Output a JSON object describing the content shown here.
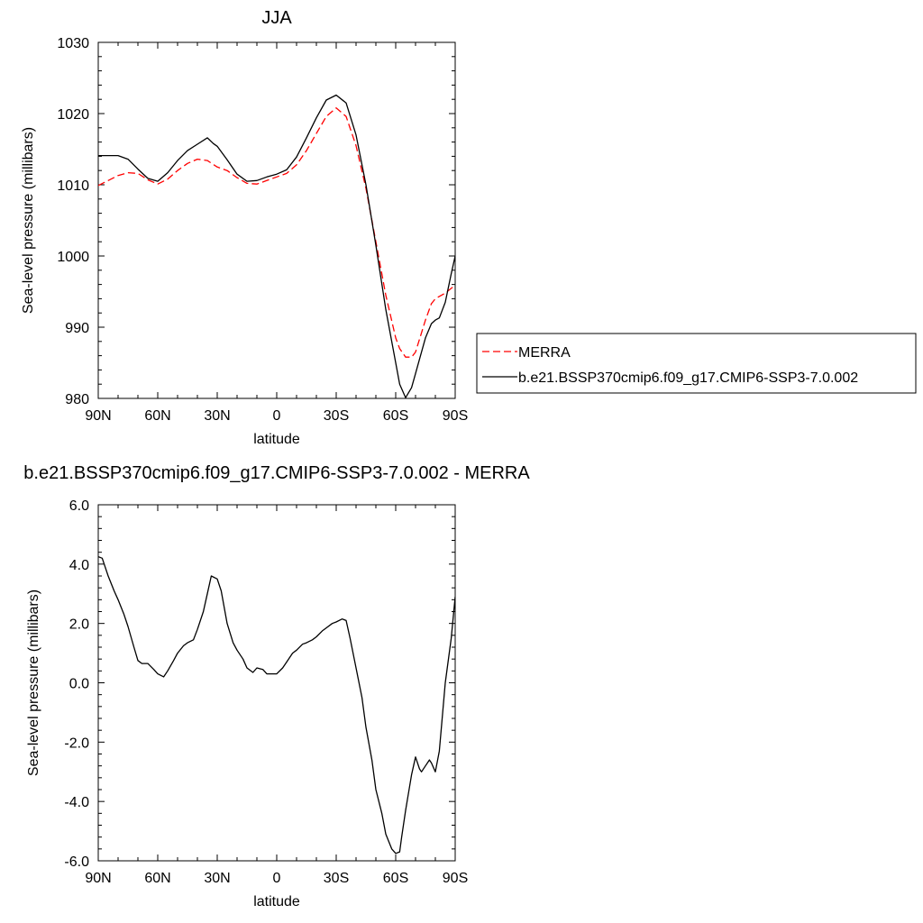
{
  "chart_data": [
    {
      "type": "line",
      "title": "JJA",
      "xlabel": "latitude",
      "ylabel": "Sea-level pressure (millibars)",
      "xlim": [
        -90,
        90
      ],
      "ylim": [
        980,
        1030
      ],
      "x_ticks": [
        {
          "value": -90,
          "label": "90N"
        },
        {
          "value": -60,
          "label": "60N"
        },
        {
          "value": -30,
          "label": "30N"
        },
        {
          "value": 0,
          "label": "0"
        },
        {
          "value": 30,
          "label": "30S"
        },
        {
          "value": 60,
          "label": "60S"
        },
        {
          "value": 90,
          "label": "90S"
        }
      ],
      "y_ticks": [
        {
          "value": 980,
          "label": "980"
        },
        {
          "value": 990,
          "label": "990"
        },
        {
          "value": 1000,
          "label": "1000"
        },
        {
          "value": 1010,
          "label": "1010"
        },
        {
          "value": 1020,
          "label": "1020"
        },
        {
          "value": 1030,
          "label": "1030"
        }
      ],
      "legend_position": "right",
      "series": [
        {
          "name": "MERRA",
          "color": "#ff0000",
          "style": "dashed",
          "x": [
            -90,
            -85,
            -80,
            -75,
            -70,
            -65,
            -60,
            -55,
            -50,
            -45,
            -40,
            -35,
            -30,
            -25,
            -20,
            -15,
            -10,
            -5,
            0,
            5,
            10,
            15,
            20,
            25,
            30,
            35,
            40,
            45,
            50,
            55,
            60,
            62,
            65,
            68,
            70,
            72,
            75,
            78,
            80,
            85,
            90
          ],
          "y": [
            1009.9,
            1010.6,
            1011.3,
            1011.7,
            1011.6,
            1010.7,
            1010.1,
            1010.8,
            1012.0,
            1013.0,
            1013.6,
            1013.4,
            1012.5,
            1012.0,
            1011.0,
            1010.2,
            1010.1,
            1010.6,
            1011.1,
            1011.6,
            1012.8,
            1014.8,
            1017.2,
            1019.6,
            1020.8,
            1019.6,
            1015.5,
            1009.5,
            1002.0,
            994.5,
            988.5,
            987.0,
            985.8,
            985.8,
            986.5,
            988.3,
            991.0,
            993.3,
            994.0,
            994.8,
            995.9
          ]
        },
        {
          "name": "b.e21.BSSP370cmip6.f09_g17.CMIP6-SSP3-7.0.002",
          "color": "#000000",
          "style": "solid",
          "x": [
            -90,
            -85,
            -80,
            -75,
            -70,
            -65,
            -60,
            -55,
            -50,
            -45,
            -40,
            -35,
            -32,
            -30,
            -25,
            -20,
            -15,
            -10,
            -5,
            0,
            5,
            10,
            15,
            20,
            25,
            30,
            35,
            40,
            45,
            50,
            55,
            60,
            62,
            65,
            68,
            70,
            72,
            75,
            78,
            80,
            82,
            85,
            88,
            90
          ],
          "y": [
            1014.1,
            1014.1,
            1014.1,
            1013.6,
            1012.2,
            1010.9,
            1010.5,
            1011.7,
            1013.4,
            1014.8,
            1015.7,
            1016.6,
            1015.8,
            1015.4,
            1013.5,
            1011.5,
            1010.5,
            1010.6,
            1011.1,
            1011.5,
            1012.1,
            1013.9,
            1016.6,
            1019.4,
            1021.9,
            1022.6,
            1021.5,
            1017.0,
            1010.0,
            1001.5,
            992.5,
            985.0,
            982.0,
            980.1,
            981.5,
            983.5,
            985.5,
            988.5,
            990.5,
            991.0,
            991.3,
            993.5,
            997.5,
            1000.0
          ]
        }
      ]
    },
    {
      "type": "line",
      "title": "b.e21.BSSP370cmip6.f09_g17.CMIP6-SSP3-7.0.002 - MERRA",
      "xlabel": "latitude",
      "ylabel": "Sea-level pressure (millibars)",
      "xlim": [
        -90,
        90
      ],
      "ylim": [
        -6.0,
        6.0
      ],
      "x_ticks": [
        {
          "value": -90,
          "label": "90N"
        },
        {
          "value": -60,
          "label": "60N"
        },
        {
          "value": -30,
          "label": "30N"
        },
        {
          "value": 0,
          "label": "0"
        },
        {
          "value": 30,
          "label": "30S"
        },
        {
          "value": 60,
          "label": "60S"
        },
        {
          "value": 90,
          "label": "90S"
        }
      ],
      "y_ticks": [
        {
          "value": -6.0,
          "label": "-6.0"
        },
        {
          "value": -4.0,
          "label": "-4.0"
        },
        {
          "value": -2.0,
          "label": "-2.0"
        },
        {
          "value": 0.0,
          "label": "0.0"
        },
        {
          "value": 2.0,
          "label": "2.0"
        },
        {
          "value": 4.0,
          "label": "4.0"
        },
        {
          "value": 6.0,
          "label": "6.0"
        }
      ],
      "series": [
        {
          "color": "#000000",
          "style": "solid",
          "x": [
            -90,
            -88,
            -85,
            -82,
            -80,
            -77,
            -75,
            -72,
            -70,
            -68,
            -65,
            -62,
            -60,
            -57,
            -55,
            -52,
            -50,
            -47,
            -45,
            -42,
            -40,
            -37,
            -35,
            -33,
            -30,
            -28,
            -25,
            -22,
            -20,
            -17,
            -15,
            -12,
            -10,
            -7,
            -5,
            -2,
            0,
            3,
            5,
            8,
            10,
            13,
            15,
            18,
            20,
            23,
            25,
            28,
            30,
            33,
            35,
            37,
            40,
            43,
            45,
            48,
            50,
            53,
            55,
            58,
            60,
            62,
            63,
            65,
            67,
            68,
            70,
            72,
            73,
            75,
            77,
            78,
            80,
            82,
            85,
            88,
            90
          ],
          "y": [
            4.25,
            4.2,
            3.6,
            3.1,
            2.8,
            2.3,
            1.9,
            1.2,
            0.75,
            0.65,
            0.65,
            0.45,
            0.3,
            0.2,
            0.4,
            0.75,
            1.0,
            1.25,
            1.35,
            1.45,
            1.8,
            2.4,
            3.0,
            3.6,
            3.5,
            3.1,
            2.0,
            1.35,
            1.1,
            0.8,
            0.5,
            0.35,
            0.5,
            0.45,
            0.3,
            0.3,
            0.3,
            0.5,
            0.7,
            1.0,
            1.1,
            1.3,
            1.35,
            1.45,
            1.55,
            1.75,
            1.85,
            2.0,
            2.05,
            2.15,
            2.1,
            1.5,
            0.5,
            -0.5,
            -1.5,
            -2.6,
            -3.6,
            -4.4,
            -5.1,
            -5.6,
            -5.75,
            -5.7,
            -5.2,
            -4.3,
            -3.5,
            -3.1,
            -2.5,
            -2.9,
            -3.0,
            -2.8,
            -2.6,
            -2.7,
            -3.0,
            -2.3,
            0.0,
            1.5,
            2.9
          ]
        }
      ]
    }
  ]
}
